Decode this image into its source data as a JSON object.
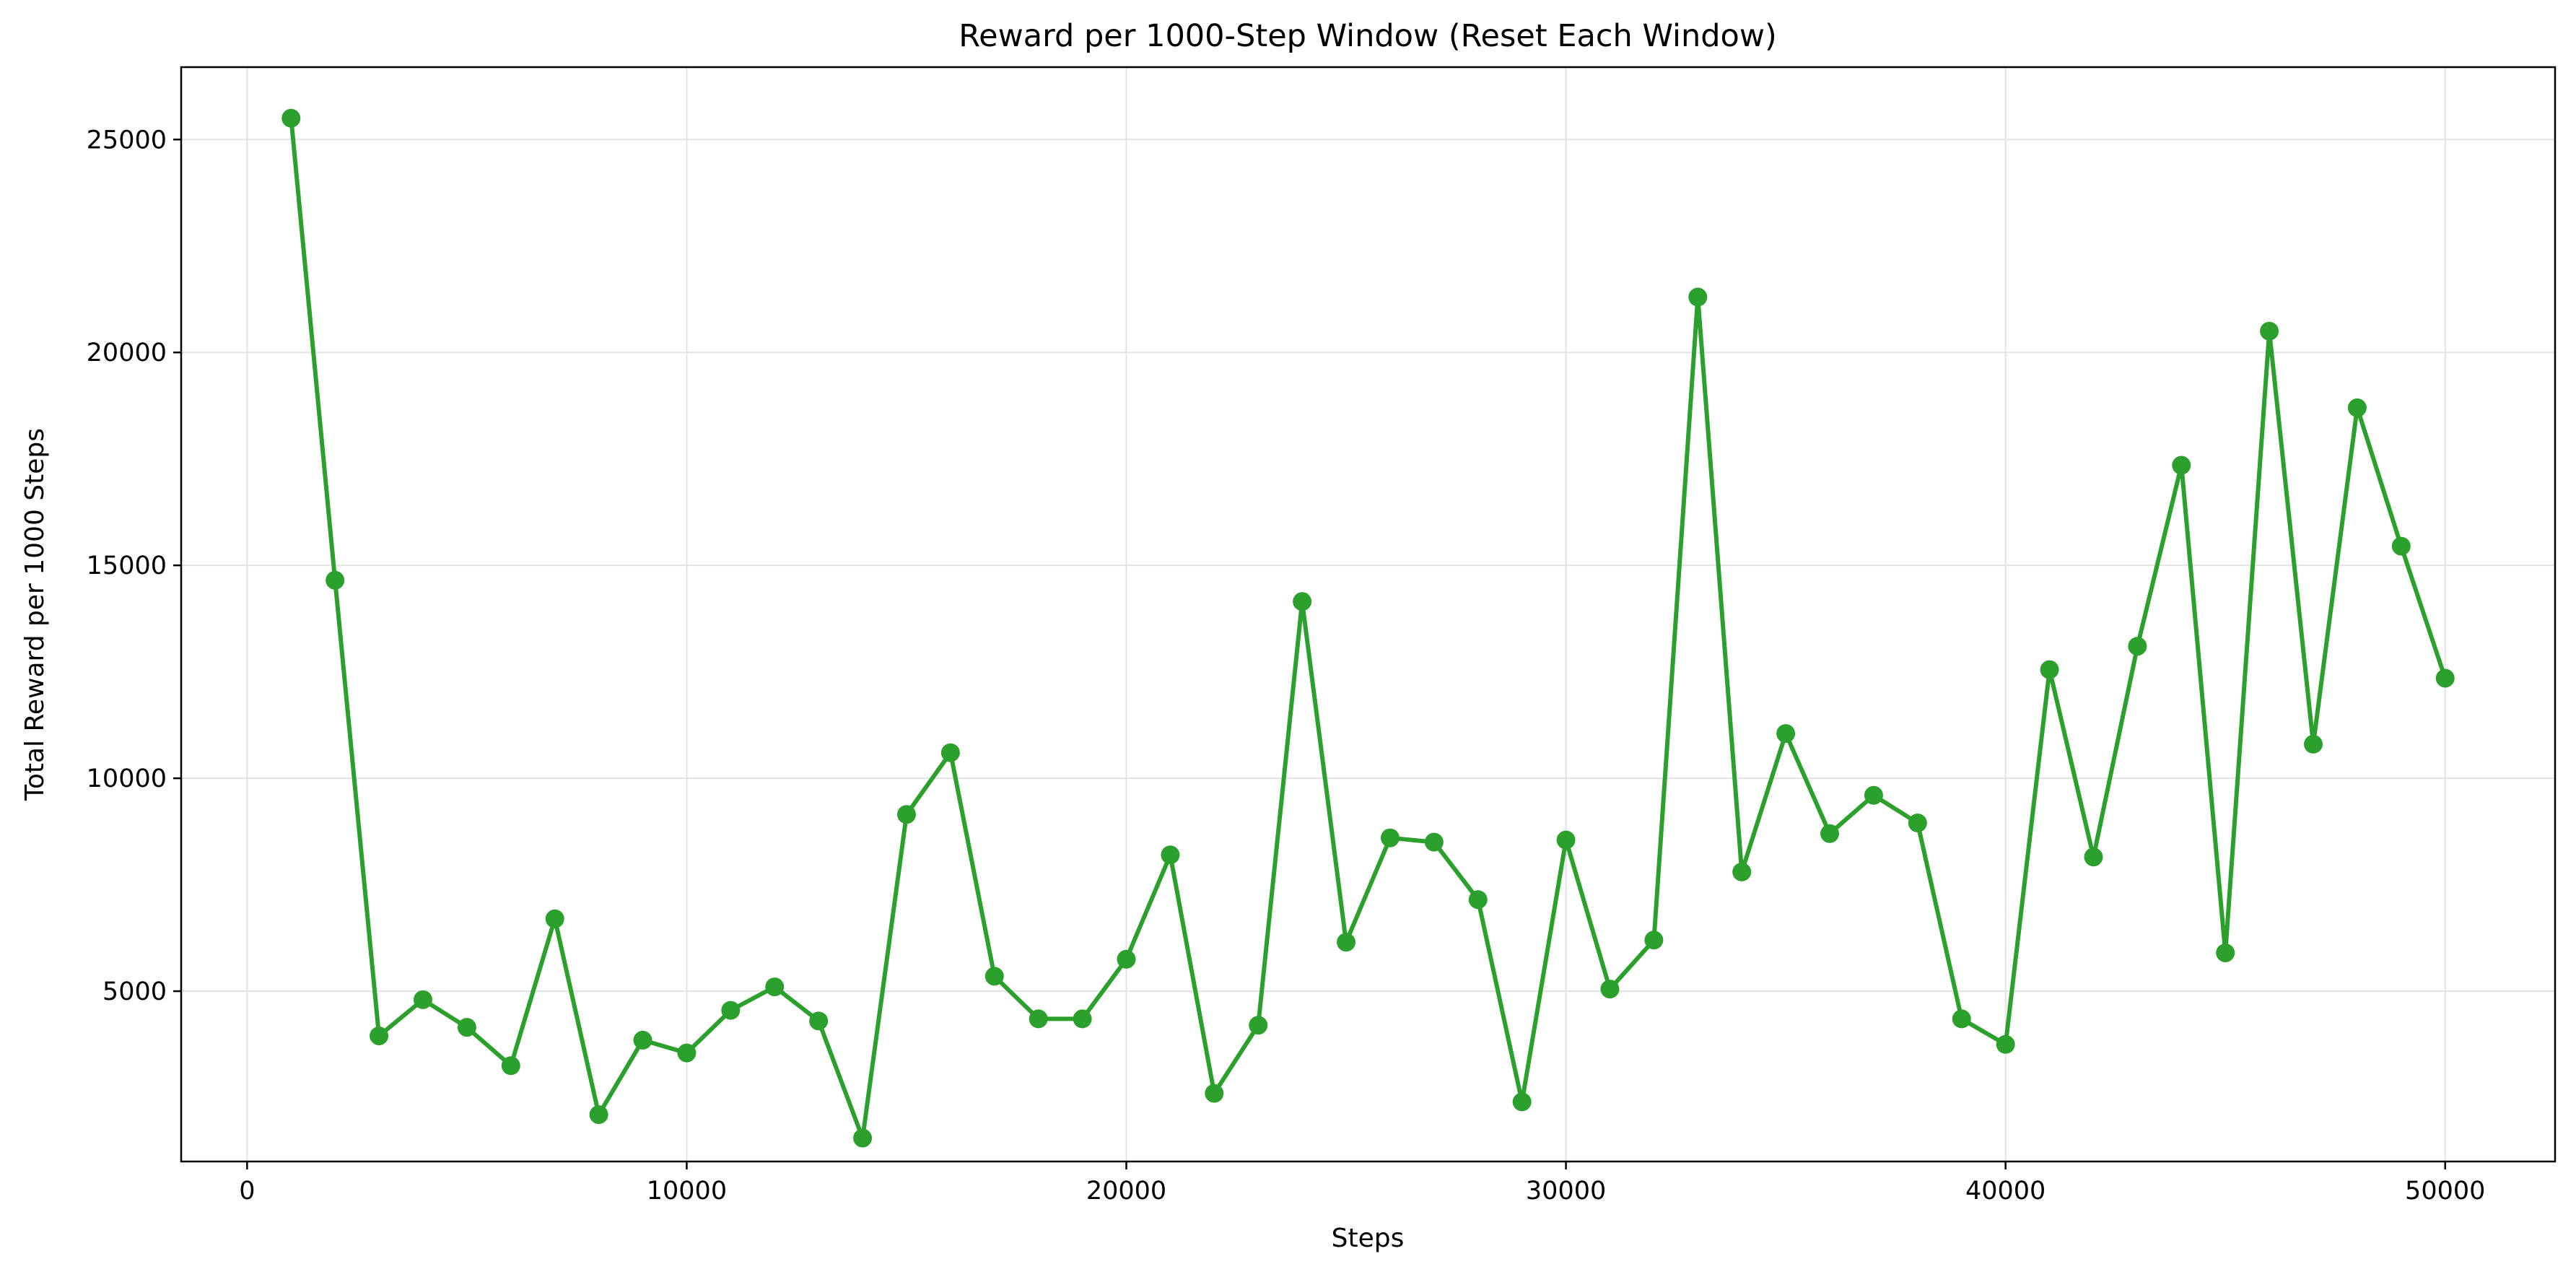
{
  "chart_data": {
    "type": "line",
    "title": "Reward per 1000-Step Window (Reset Each Window)",
    "xlabel": "Steps",
    "ylabel": "Total Reward per 1000 Steps",
    "xlim": [
      -1500,
      52500
    ],
    "ylim": [
      1000,
      26700
    ],
    "x_ticks": [
      0,
      10000,
      20000,
      30000,
      40000,
      50000
    ],
    "y_ticks": [
      5000,
      10000,
      15000,
      20000,
      25000
    ],
    "grid": true,
    "color": "#2ca02c",
    "markers": true,
    "series": [
      {
        "x": [
          1000,
          2000,
          3000,
          4000,
          5000,
          6000,
          7000,
          8000,
          9000,
          10000,
          11000,
          12000,
          13000,
          14000,
          15000,
          16000,
          17000,
          18000,
          19000,
          20000,
          21000,
          22000,
          23000,
          24000,
          25000,
          26000,
          27000,
          28000,
          29000,
          30000,
          31000,
          32000,
          33000,
          34000,
          35000,
          36000,
          37000,
          38000,
          39000,
          40000,
          41000,
          42000,
          43000,
          44000,
          45000,
          46000,
          47000,
          48000,
          49000,
          50000
        ],
        "y": [
          25500,
          14650,
          3950,
          4800,
          4150,
          3250,
          6700,
          2100,
          3850,
          3550,
          4550,
          5100,
          4300,
          1550,
          9150,
          10600,
          5350,
          4350,
          4350,
          5750,
          8200,
          2600,
          4200,
          14150,
          6150,
          8600,
          8500,
          7150,
          2400,
          8550,
          5050,
          6200,
          21300,
          7800,
          11050,
          8700,
          9600,
          8950,
          4350,
          3750,
          12550,
          8150,
          13100,
          17350,
          5900,
          20500,
          10800,
          18700,
          15450,
          12350
        ]
      }
    ]
  }
}
